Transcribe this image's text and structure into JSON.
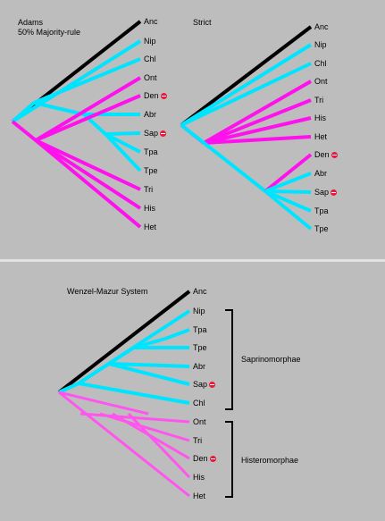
{
  "colors": {
    "background": "#bdbdbd",
    "divider": "#e2e2e2",
    "black_branch": "#000000",
    "cyan_branch": "#00e5ff",
    "magenta_branch": "#ff11ee",
    "pink_branch": "#ff55ee",
    "mark": "#e8193c"
  },
  "top_panel": {
    "adams_title_line1": "Adams",
    "adams_title_line2": "50% Majority-rule",
    "strict_title": "Strict",
    "adams_tips": [
      "Anc",
      "Nip",
      "Chl",
      "Ont",
      "Den",
      "Abr",
      "Sap",
      "Tpa",
      "Tpe",
      "Tri",
      "His",
      "Het"
    ],
    "strict_tips": [
      "Anc",
      "Nip",
      "Chl",
      "Ont",
      "Tri",
      "His",
      "Het",
      "Den",
      "Abr",
      "Sap",
      "Tpa",
      "Tpe"
    ]
  },
  "bottom_panel": {
    "title": "Wenzel-Mazur System",
    "tips": [
      "Anc",
      "Nip",
      "Tpa",
      "Tpe",
      "Abr",
      "Sap",
      "Chl",
      "Ont",
      "Tri",
      "Den",
      "His",
      "Het"
    ],
    "group1": "Saprinomorphae",
    "group2": "Histeromorphae"
  },
  "marked_taxa": [
    "Den",
    "Sap"
  ],
  "icons": [
    "mark-icon"
  ]
}
